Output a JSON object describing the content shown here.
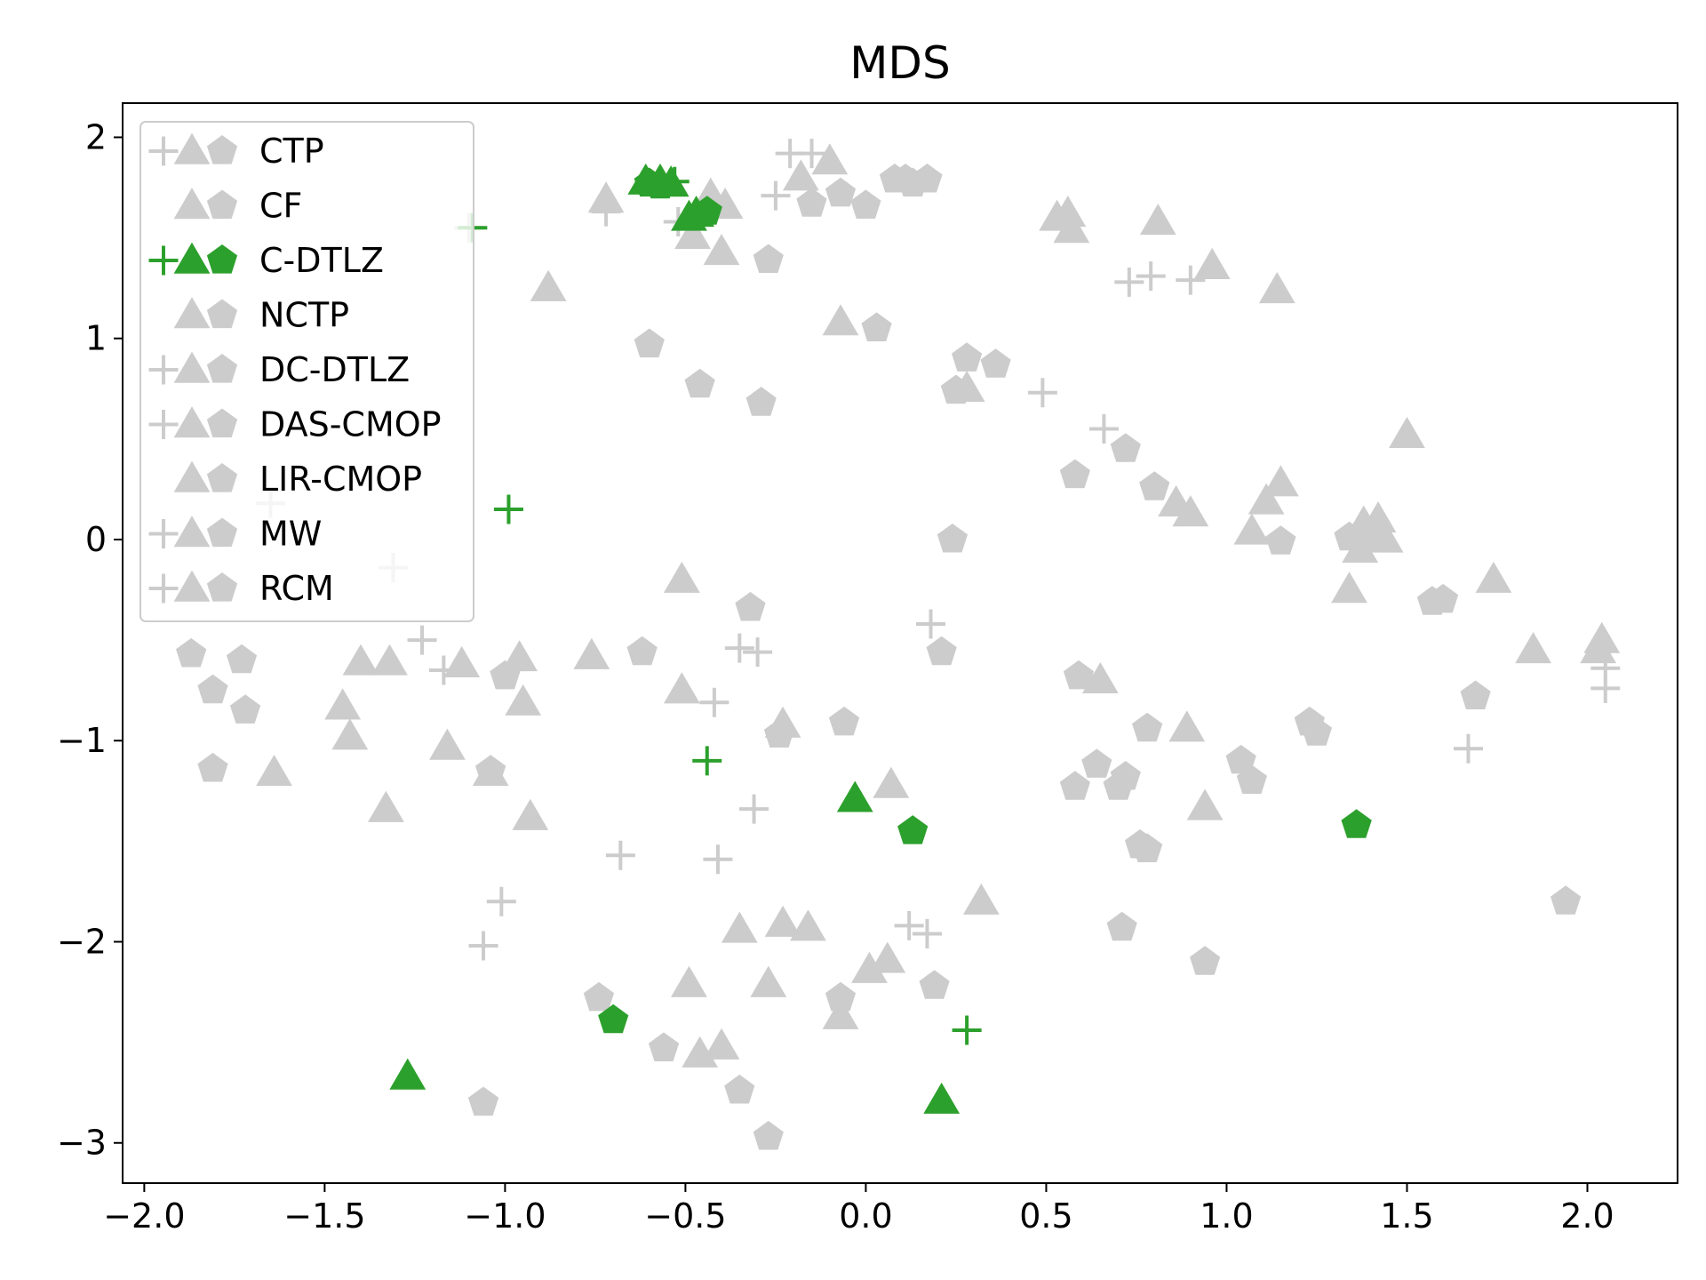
{
  "chart_data": {
    "type": "scatter",
    "title": "MDS",
    "xlabel": "",
    "ylabel": "",
    "xlim": [
      -2.06,
      2.25
    ],
    "ylim": [
      -3.2,
      2.17
    ],
    "xticks": [
      -2.0,
      -1.5,
      -1.0,
      -0.5,
      0.0,
      0.5,
      1.0,
      1.5,
      2.0
    ],
    "yticks": [
      -3,
      -2,
      -1,
      0,
      1,
      2
    ],
    "xtick_labels": [
      "−2.0",
      "−1.5",
      "−1.0",
      "−0.5",
      "0.0",
      "0.5",
      "1.0",
      "1.5",
      "2.0"
    ],
    "ytick_labels": [
      "−3",
      "−2",
      "−1",
      "0",
      "1",
      "2"
    ],
    "grid": false,
    "legend_position": "upper-left",
    "colors": {
      "highlight": "#2ca02c",
      "muted": "#cccccc"
    },
    "legend": [
      {
        "name": "CTP",
        "markers": [
          "plus",
          "triangle",
          "pentagon"
        ],
        "color": "#cccccc"
      },
      {
        "name": "CF",
        "markers": [
          "triangle",
          "pentagon"
        ],
        "color": "#cccccc"
      },
      {
        "name": "C-DTLZ",
        "markers": [
          "plus",
          "triangle",
          "pentagon"
        ],
        "color": "#2ca02c"
      },
      {
        "name": "NCTP",
        "markers": [
          "triangle",
          "pentagon"
        ],
        "color": "#cccccc"
      },
      {
        "name": "DC-DTLZ",
        "markers": [
          "plus",
          "triangle",
          "pentagon"
        ],
        "color": "#cccccc"
      },
      {
        "name": "DAS-CMOP",
        "markers": [
          "plus",
          "triangle",
          "pentagon"
        ],
        "color": "#cccccc"
      },
      {
        "name": "LIR-CMOP",
        "markers": [
          "triangle",
          "pentagon"
        ],
        "color": "#cccccc"
      },
      {
        "name": "MW",
        "markers": [
          "plus",
          "triangle",
          "pentagon"
        ],
        "color": "#cccccc"
      },
      {
        "name": "RCM",
        "markers": [
          "plus",
          "triangle",
          "pentagon"
        ],
        "color": "#cccccc"
      }
    ],
    "series": [
      {
        "name": "other",
        "color": "#cccccc",
        "points": [
          {
            "m": "plus",
            "x": -0.21,
            "y": 1.92
          },
          {
            "m": "plus",
            "x": -0.15,
            "y": 1.92
          },
          {
            "m": "plus",
            "x": -0.25,
            "y": 1.71
          },
          {
            "m": "plus",
            "x": -0.52,
            "y": 1.58
          },
          {
            "m": "plus",
            "x": -0.72,
            "y": 1.63
          },
          {
            "m": "plus",
            "x": 0.73,
            "y": 1.28
          },
          {
            "m": "plus",
            "x": 0.79,
            "y": 1.31
          },
          {
            "m": "plus",
            "x": 0.9,
            "y": 1.29
          },
          {
            "m": "plus",
            "x": 0.49,
            "y": 0.73
          },
          {
            "m": "plus",
            "x": 0.66,
            "y": 0.55
          },
          {
            "m": "plus",
            "x": -1.31,
            "y": -0.14
          },
          {
            "m": "plus",
            "x": -1.23,
            "y": -0.5
          },
          {
            "m": "plus",
            "x": -1.17,
            "y": -0.65
          },
          {
            "m": "plus",
            "x": -1.65,
            "y": 0.18
          },
          {
            "m": "plus",
            "x": -0.35,
            "y": -0.54
          },
          {
            "m": "plus",
            "x": -0.3,
            "y": -0.56
          },
          {
            "m": "plus",
            "x": -0.42,
            "y": -0.81
          },
          {
            "m": "plus",
            "x": 0.18,
            "y": -0.42
          },
          {
            "m": "plus",
            "x": -0.31,
            "y": -1.34
          },
          {
            "m": "plus",
            "x": -0.68,
            "y": -1.57
          },
          {
            "m": "plus",
            "x": -0.41,
            "y": -1.59
          },
          {
            "m": "plus",
            "x": -1.01,
            "y": -1.8
          },
          {
            "m": "plus",
            "x": -1.06,
            "y": -2.02
          },
          {
            "m": "plus",
            "x": 0.12,
            "y": -1.92
          },
          {
            "m": "plus",
            "x": 0.17,
            "y": -1.96
          },
          {
            "m": "plus",
            "x": 2.05,
            "y": -0.64
          },
          {
            "m": "plus",
            "x": 2.05,
            "y": -0.74
          },
          {
            "m": "plus",
            "x": 1.67,
            "y": -1.04
          },
          {
            "m": "plus",
            "x": -1.1,
            "y": 1.55
          },
          {
            "m": "triangle",
            "x": -0.18,
            "y": 1.8
          },
          {
            "m": "triangle",
            "x": -0.1,
            "y": 1.88
          },
          {
            "m": "triangle",
            "x": -0.72,
            "y": 1.69
          },
          {
            "m": "triangle",
            "x": -0.43,
            "y": 1.71
          },
          {
            "m": "triangle",
            "x": -0.39,
            "y": 1.66
          },
          {
            "m": "triangle",
            "x": -0.48,
            "y": 1.51
          },
          {
            "m": "triangle",
            "x": -0.4,
            "y": 1.43
          },
          {
            "m": "triangle",
            "x": -0.88,
            "y": 1.25
          },
          {
            "m": "triangle",
            "x": 0.53,
            "y": 1.6
          },
          {
            "m": "triangle",
            "x": 0.56,
            "y": 1.62
          },
          {
            "m": "triangle",
            "x": 0.57,
            "y": 1.54
          },
          {
            "m": "triangle",
            "x": 0.81,
            "y": 1.58
          },
          {
            "m": "triangle",
            "x": 0.96,
            "y": 1.36
          },
          {
            "m": "triangle",
            "x": 1.14,
            "y": 1.24
          },
          {
            "m": "triangle",
            "x": -0.07,
            "y": 1.08
          },
          {
            "m": "triangle",
            "x": 0.28,
            "y": 0.75
          },
          {
            "m": "triangle",
            "x": 1.5,
            "y": 0.52
          },
          {
            "m": "triangle",
            "x": 0.86,
            "y": 0.18
          },
          {
            "m": "triangle",
            "x": 0.9,
            "y": 0.13
          },
          {
            "m": "triangle",
            "x": 1.11,
            "y": 0.19
          },
          {
            "m": "triangle",
            "x": 1.15,
            "y": 0.28
          },
          {
            "m": "triangle",
            "x": 1.07,
            "y": 0.04
          },
          {
            "m": "triangle",
            "x": 1.38,
            "y": 0.08
          },
          {
            "m": "triangle",
            "x": 1.42,
            "y": 0.1
          },
          {
            "m": "triangle",
            "x": 1.37,
            "y": -0.05
          },
          {
            "m": "triangle",
            "x": 1.44,
            "y": 0.0
          },
          {
            "m": "triangle",
            "x": 1.34,
            "y": -0.25
          },
          {
            "m": "triangle",
            "x": 1.74,
            "y": -0.2
          },
          {
            "m": "triangle",
            "x": 1.85,
            "y": -0.55
          },
          {
            "m": "triangle",
            "x": 2.04,
            "y": -0.5
          },
          {
            "m": "triangle",
            "x": 2.03,
            "y": -0.55
          },
          {
            "m": "triangle",
            "x": 0.65,
            "y": -0.7
          },
          {
            "m": "triangle",
            "x": 0.89,
            "y": -0.94
          },
          {
            "m": "triangle",
            "x": 0.94,
            "y": -1.33
          },
          {
            "m": "triangle",
            "x": -0.51,
            "y": -0.2
          },
          {
            "m": "triangle",
            "x": -0.76,
            "y": -0.58
          },
          {
            "m": "triangle",
            "x": -0.51,
            "y": -0.75
          },
          {
            "m": "triangle",
            "x": -0.96,
            "y": -0.59
          },
          {
            "m": "triangle",
            "x": -0.95,
            "y": -0.81
          },
          {
            "m": "triangle",
            "x": -1.12,
            "y": -0.62
          },
          {
            "m": "triangle",
            "x": -1.32,
            "y": -0.61
          },
          {
            "m": "triangle",
            "x": -1.4,
            "y": -0.61
          },
          {
            "m": "triangle",
            "x": -1.45,
            "y": -0.83
          },
          {
            "m": "triangle",
            "x": -1.43,
            "y": -0.98
          },
          {
            "m": "triangle",
            "x": -1.16,
            "y": -1.03
          },
          {
            "m": "triangle",
            "x": -1.04,
            "y": -1.16
          },
          {
            "m": "triangle",
            "x": -1.64,
            "y": -1.16
          },
          {
            "m": "triangle",
            "x": -1.33,
            "y": -1.34
          },
          {
            "m": "triangle",
            "x": -0.93,
            "y": -1.38
          },
          {
            "m": "triangle",
            "x": -0.23,
            "y": -0.92
          },
          {
            "m": "triangle",
            "x": 0.07,
            "y": -1.22
          },
          {
            "m": "triangle",
            "x": 0.32,
            "y": -1.8
          },
          {
            "m": "triangle",
            "x": -0.35,
            "y": -1.94
          },
          {
            "m": "triangle",
            "x": -0.23,
            "y": -1.91
          },
          {
            "m": "triangle",
            "x": -0.16,
            "y": -1.93
          },
          {
            "m": "triangle",
            "x": 0.06,
            "y": -2.09
          },
          {
            "m": "triangle",
            "x": 0.01,
            "y": -2.14
          },
          {
            "m": "triangle",
            "x": -0.49,
            "y": -2.21
          },
          {
            "m": "triangle",
            "x": -0.27,
            "y": -2.21
          },
          {
            "m": "triangle",
            "x": -0.07,
            "y": -2.37
          },
          {
            "m": "triangle",
            "x": -0.46,
            "y": -2.56
          },
          {
            "m": "triangle",
            "x": -0.4,
            "y": -2.52
          },
          {
            "m": "pentagon",
            "x": 0.08,
            "y": 1.79
          },
          {
            "m": "pentagon",
            "x": 0.11,
            "y": 1.79
          },
          {
            "m": "pentagon",
            "x": 0.13,
            "y": 1.77
          },
          {
            "m": "pentagon",
            "x": 0.17,
            "y": 1.79
          },
          {
            "m": "pentagon",
            "x": -0.07,
            "y": 1.72
          },
          {
            "m": "pentagon",
            "x": -0.15,
            "y": 1.67
          },
          {
            "m": "pentagon",
            "x": 0.0,
            "y": 1.66
          },
          {
            "m": "pentagon",
            "x": -0.27,
            "y": 1.39
          },
          {
            "m": "pentagon",
            "x": 0.03,
            "y": 1.05
          },
          {
            "m": "pentagon",
            "x": -0.6,
            "y": 0.97
          },
          {
            "m": "pentagon",
            "x": -0.46,
            "y": 0.77
          },
          {
            "m": "pentagon",
            "x": -0.29,
            "y": 0.68
          },
          {
            "m": "pentagon",
            "x": 0.28,
            "y": 0.9
          },
          {
            "m": "pentagon",
            "x": 0.36,
            "y": 0.87
          },
          {
            "m": "pentagon",
            "x": 0.25,
            "y": 0.74
          },
          {
            "m": "pentagon",
            "x": 0.72,
            "y": 0.45
          },
          {
            "m": "pentagon",
            "x": 0.58,
            "y": 0.32
          },
          {
            "m": "pentagon",
            "x": 0.8,
            "y": 0.26
          },
          {
            "m": "pentagon",
            "x": 0.24,
            "y": 0.0
          },
          {
            "m": "pentagon",
            "x": 1.15,
            "y": -0.01
          },
          {
            "m": "pentagon",
            "x": 1.34,
            "y": 0.01
          },
          {
            "m": "pentagon",
            "x": 1.38,
            "y": 0.01
          },
          {
            "m": "pentagon",
            "x": 1.57,
            "y": -0.31
          },
          {
            "m": "pentagon",
            "x": 1.6,
            "y": -0.3
          },
          {
            "m": "pentagon",
            "x": 1.69,
            "y": -0.78
          },
          {
            "m": "pentagon",
            "x": 1.94,
            "y": -1.8
          },
          {
            "m": "pentagon",
            "x": -0.32,
            "y": -0.34
          },
          {
            "m": "pentagon",
            "x": -0.62,
            "y": -0.56
          },
          {
            "m": "pentagon",
            "x": 0.21,
            "y": -0.56
          },
          {
            "m": "pentagon",
            "x": 0.59,
            "y": -0.68
          },
          {
            "m": "pentagon",
            "x": -0.06,
            "y": -0.91
          },
          {
            "m": "pentagon",
            "x": -0.24,
            "y": -0.97
          },
          {
            "m": "pentagon",
            "x": -1.0,
            "y": -0.68
          },
          {
            "m": "pentagon",
            "x": -1.87,
            "y": -0.57
          },
          {
            "m": "pentagon",
            "x": -1.73,
            "y": -0.6
          },
          {
            "m": "pentagon",
            "x": -1.81,
            "y": -0.75
          },
          {
            "m": "pentagon",
            "x": -1.72,
            "y": -0.85
          },
          {
            "m": "pentagon",
            "x": -1.81,
            "y": -1.14
          },
          {
            "m": "pentagon",
            "x": -1.04,
            "y": -1.15
          },
          {
            "m": "pentagon",
            "x": 0.78,
            "y": -0.94
          },
          {
            "m": "pentagon",
            "x": 0.64,
            "y": -1.12
          },
          {
            "m": "pentagon",
            "x": 0.58,
            "y": -1.23
          },
          {
            "m": "pentagon",
            "x": 0.7,
            "y": -1.23
          },
          {
            "m": "pentagon",
            "x": 0.72,
            "y": -1.18
          },
          {
            "m": "pentagon",
            "x": 1.04,
            "y": -1.1
          },
          {
            "m": "pentagon",
            "x": 1.07,
            "y": -1.2
          },
          {
            "m": "pentagon",
            "x": 1.23,
            "y": -0.91
          },
          {
            "m": "pentagon",
            "x": 1.25,
            "y": -0.96
          },
          {
            "m": "pentagon",
            "x": 0.76,
            "y": -1.52
          },
          {
            "m": "pentagon",
            "x": 0.78,
            "y": -1.54
          },
          {
            "m": "pentagon",
            "x": 0.71,
            "y": -1.93
          },
          {
            "m": "pentagon",
            "x": 0.94,
            "y": -2.1
          },
          {
            "m": "pentagon",
            "x": 0.19,
            "y": -2.22
          },
          {
            "m": "pentagon",
            "x": -0.07,
            "y": -2.28
          },
          {
            "m": "pentagon",
            "x": -0.74,
            "y": -2.28
          },
          {
            "m": "pentagon",
            "x": -0.56,
            "y": -2.53
          },
          {
            "m": "pentagon",
            "x": -0.35,
            "y": -2.74
          },
          {
            "m": "pentagon",
            "x": -1.06,
            "y": -2.8
          },
          {
            "m": "pentagon",
            "x": -0.27,
            "y": -2.97
          }
        ]
      },
      {
        "name": "C-DTLZ",
        "color": "#2ca02c",
        "points": [
          {
            "m": "plus",
            "x": -1.09,
            "y": 1.55
          },
          {
            "m": "plus",
            "x": -0.53,
            "y": 1.78
          },
          {
            "m": "plus",
            "x": -0.99,
            "y": 0.15
          },
          {
            "m": "plus",
            "x": -0.44,
            "y": -1.1
          },
          {
            "m": "plus",
            "x": 0.28,
            "y": -2.44
          },
          {
            "m": "triangle",
            "x": -0.61,
            "y": 1.78
          },
          {
            "m": "triangle",
            "x": -0.57,
            "y": 1.78
          },
          {
            "m": "triangle",
            "x": -0.54,
            "y": 1.77
          },
          {
            "m": "triangle",
            "x": -0.49,
            "y": 1.6
          },
          {
            "m": "triangle",
            "x": -0.47,
            "y": 1.62
          },
          {
            "m": "triangle",
            "x": -0.03,
            "y": -1.29
          },
          {
            "m": "triangle",
            "x": -1.27,
            "y": -2.67
          },
          {
            "m": "triangle",
            "x": 0.21,
            "y": -2.79
          },
          {
            "m": "pentagon",
            "x": -0.6,
            "y": 1.77
          },
          {
            "m": "pentagon",
            "x": -0.57,
            "y": 1.76
          },
          {
            "m": "pentagon",
            "x": -0.44,
            "y": 1.63
          },
          {
            "m": "pentagon",
            "x": 0.13,
            "y": -1.45
          },
          {
            "m": "pentagon",
            "x": 1.36,
            "y": -1.42
          },
          {
            "m": "pentagon",
            "x": -0.7,
            "y": -2.39
          }
        ]
      }
    ]
  }
}
